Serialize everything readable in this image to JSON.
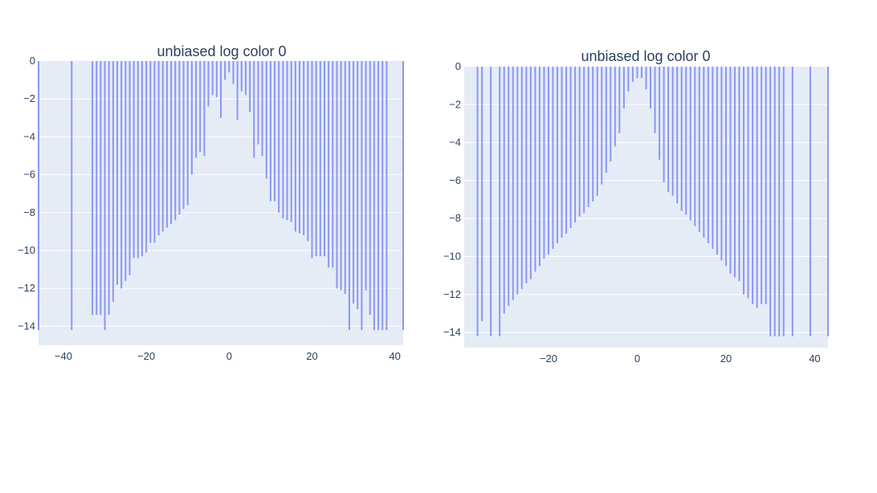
{
  "chart_data": [
    {
      "type": "bar",
      "title": "unbiased log color 0",
      "xlabel": "",
      "ylabel": "",
      "xlim": [
        -46,
        42
      ],
      "ylim": [
        -15,
        0
      ],
      "grid": true,
      "xticks": [
        -40,
        -20,
        0,
        20,
        40
      ],
      "yticks": [
        0,
        -2,
        -4,
        -6,
        -8,
        -10,
        -12,
        -14
      ],
      "color": "#8c96f5",
      "plot_bg": "#e5ecf6",
      "x": [
        -46,
        -38,
        -33,
        -32,
        -31,
        -30,
        -29,
        -28,
        -27,
        -26,
        -25,
        -24,
        -23,
        -22,
        -21,
        -20,
        -19,
        -18,
        -17,
        -16,
        -15,
        -14,
        -13,
        -12,
        -11,
        -10,
        -9,
        -8,
        -7,
        -6,
        -5,
        -4,
        -3,
        -2,
        -1,
        0,
        1,
        2,
        3,
        4,
        5,
        6,
        7,
        8,
        9,
        10,
        11,
        12,
        13,
        14,
        15,
        16,
        17,
        18,
        19,
        20,
        21,
        22,
        23,
        24,
        25,
        26,
        27,
        28,
        29,
        30,
        31,
        32,
        33,
        34,
        35,
        36,
        37,
        38,
        42
      ],
      "y": [
        -14.2,
        -14.2,
        -13.4,
        -13.4,
        -13.4,
        -14.2,
        -13.4,
        -12.7,
        -11.8,
        -12.0,
        -11.6,
        -11.3,
        -10.4,
        -10.4,
        -10.3,
        -10.1,
        -9.6,
        -9.6,
        -9.2,
        -9.0,
        -8.8,
        -8.6,
        -8.4,
        -8.1,
        -7.8,
        -7.6,
        -6.0,
        -5.1,
        -4.8,
        -5.0,
        -2.4,
        -1.8,
        -1.9,
        -3.0,
        -1.0,
        -0.6,
        -1.2,
        -3.1,
        -1.6,
        -1.8,
        -2.7,
        -5.1,
        -4.4,
        -5.0,
        -6.2,
        -7.4,
        -7.4,
        -8.0,
        -8.3,
        -8.4,
        -8.5,
        -9.0,
        -9.1,
        -9.2,
        -9.5,
        -10.4,
        -10.3,
        -10.3,
        -10.3,
        -10.9,
        -10.9,
        -12.0,
        -12.1,
        -12.3,
        -14.2,
        -12.8,
        -13.1,
        -14.2,
        -12.1,
        -13.4,
        -14.2,
        -14.2,
        -14.2,
        -14.2,
        -14.2
      ]
    },
    {
      "type": "bar",
      "title": "unbiased log color 0",
      "xlabel": "",
      "ylabel": "",
      "xlim": [
        -39,
        43
      ],
      "ylim": [
        -14.8,
        0
      ],
      "grid": true,
      "xticks": [
        -20,
        0,
        20,
        40
      ],
      "yticks": [
        0,
        -2,
        -4,
        -6,
        -8,
        -10,
        -12,
        -14
      ],
      "color": "#8c96f5",
      "plot_bg": "#e5ecf6",
      "x": [
        -36,
        -35,
        -33,
        -31,
        -30,
        -29,
        -28,
        -27,
        -26,
        -25,
        -24,
        -23,
        -22,
        -21,
        -20,
        -19,
        -18,
        -17,
        -16,
        -15,
        -14,
        -13,
        -12,
        -11,
        -10,
        -9,
        -8,
        -7,
        -6,
        -5,
        -4,
        -3,
        -2,
        -1,
        0,
        1,
        2,
        3,
        4,
        5,
        6,
        7,
        8,
        9,
        10,
        11,
        12,
        13,
        14,
        15,
        16,
        17,
        18,
        19,
        20,
        21,
        22,
        23,
        24,
        25,
        26,
        27,
        28,
        29,
        30,
        31,
        32,
        33,
        35,
        39,
        43
      ],
      "y": [
        -14.2,
        -13.4,
        -14.2,
        -14.2,
        -13.0,
        -12.6,
        -12.3,
        -12.0,
        -11.7,
        -11.4,
        -11.2,
        -10.8,
        -10.5,
        -10.1,
        -9.9,
        -9.6,
        -9.3,
        -9.0,
        -8.8,
        -8.5,
        -8.2,
        -7.9,
        -7.7,
        -7.4,
        -7.1,
        -6.8,
        -6.2,
        -5.6,
        -5.0,
        -4.2,
        -3.5,
        -2.2,
        -1.3,
        -0.8,
        -0.6,
        -0.6,
        -1.2,
        -2.2,
        -3.5,
        -4.9,
        -6.1,
        -6.6,
        -6.8,
        -7.2,
        -7.6,
        -7.8,
        -8.1,
        -8.4,
        -8.7,
        -9.0,
        -9.3,
        -9.6,
        -9.9,
        -10.2,
        -10.5,
        -10.9,
        -11.1,
        -11.3,
        -12.0,
        -12.2,
        -12.5,
        -12.7,
        -12.5,
        -12.5,
        -14.2,
        -14.2,
        -14.2,
        -14.2,
        -14.2,
        -14.2,
        -14.2
      ]
    }
  ]
}
